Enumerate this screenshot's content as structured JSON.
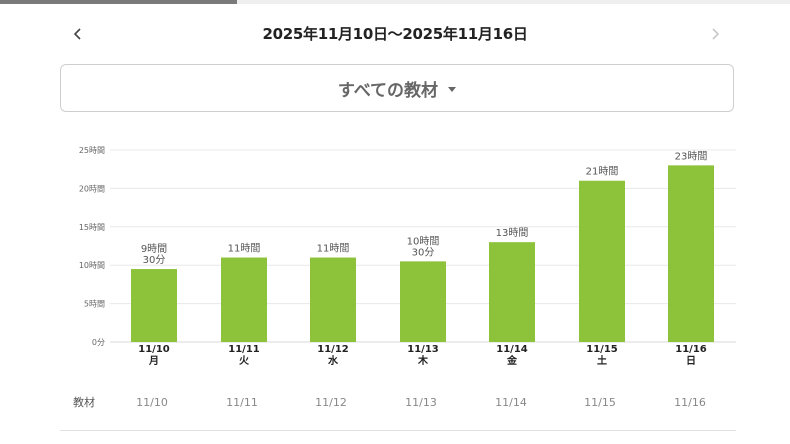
{
  "progress": {
    "fraction": 0.3
  },
  "header": {
    "date_range": "2025年11月10日〜2025年11月16日",
    "prev_icon": "chevron-left-icon",
    "next_icon": "chevron-right-icon"
  },
  "filter": {
    "selected": "すべての教材",
    "icon": "caret-down-icon"
  },
  "colors": {
    "bar": "#8dc33a",
    "grid": "#e8e8e8",
    "text": "#555555"
  },
  "chart_data": {
    "type": "bar",
    "y_unit": "hours",
    "ylim": [
      0,
      25
    ],
    "y_ticks": [
      {
        "value": 0,
        "label": "0分"
      },
      {
        "value": 5,
        "label": "5時間"
      },
      {
        "value": 10,
        "label": "10時間"
      },
      {
        "value": 15,
        "label": "15時間"
      },
      {
        "value": 20,
        "label": "20時間"
      },
      {
        "value": 25,
        "label": "25時間"
      }
    ],
    "categories": [
      {
        "date": "11/10",
        "day": "月"
      },
      {
        "date": "11/11",
        "day": "火"
      },
      {
        "date": "11/12",
        "day": "水"
      },
      {
        "date": "11/13",
        "day": "木"
      },
      {
        "date": "11/14",
        "day": "金"
      },
      {
        "date": "11/15",
        "day": "土"
      },
      {
        "date": "11/16",
        "day": "日"
      }
    ],
    "values": [
      9.5,
      11,
      11,
      10.5,
      13,
      21,
      23
    ],
    "data_labels": [
      [
        "9時間",
        "30分"
      ],
      [
        "11時間"
      ],
      [
        "11時間"
      ],
      [
        "10時間",
        "30分"
      ],
      [
        "13時間"
      ],
      [
        "21時間"
      ],
      [
        "23時間"
      ]
    ],
    "grid": true
  },
  "table": {
    "row_label": "教材",
    "columns": [
      "11/10",
      "11/11",
      "11/12",
      "11/13",
      "11/14",
      "11/15",
      "11/16"
    ]
  }
}
